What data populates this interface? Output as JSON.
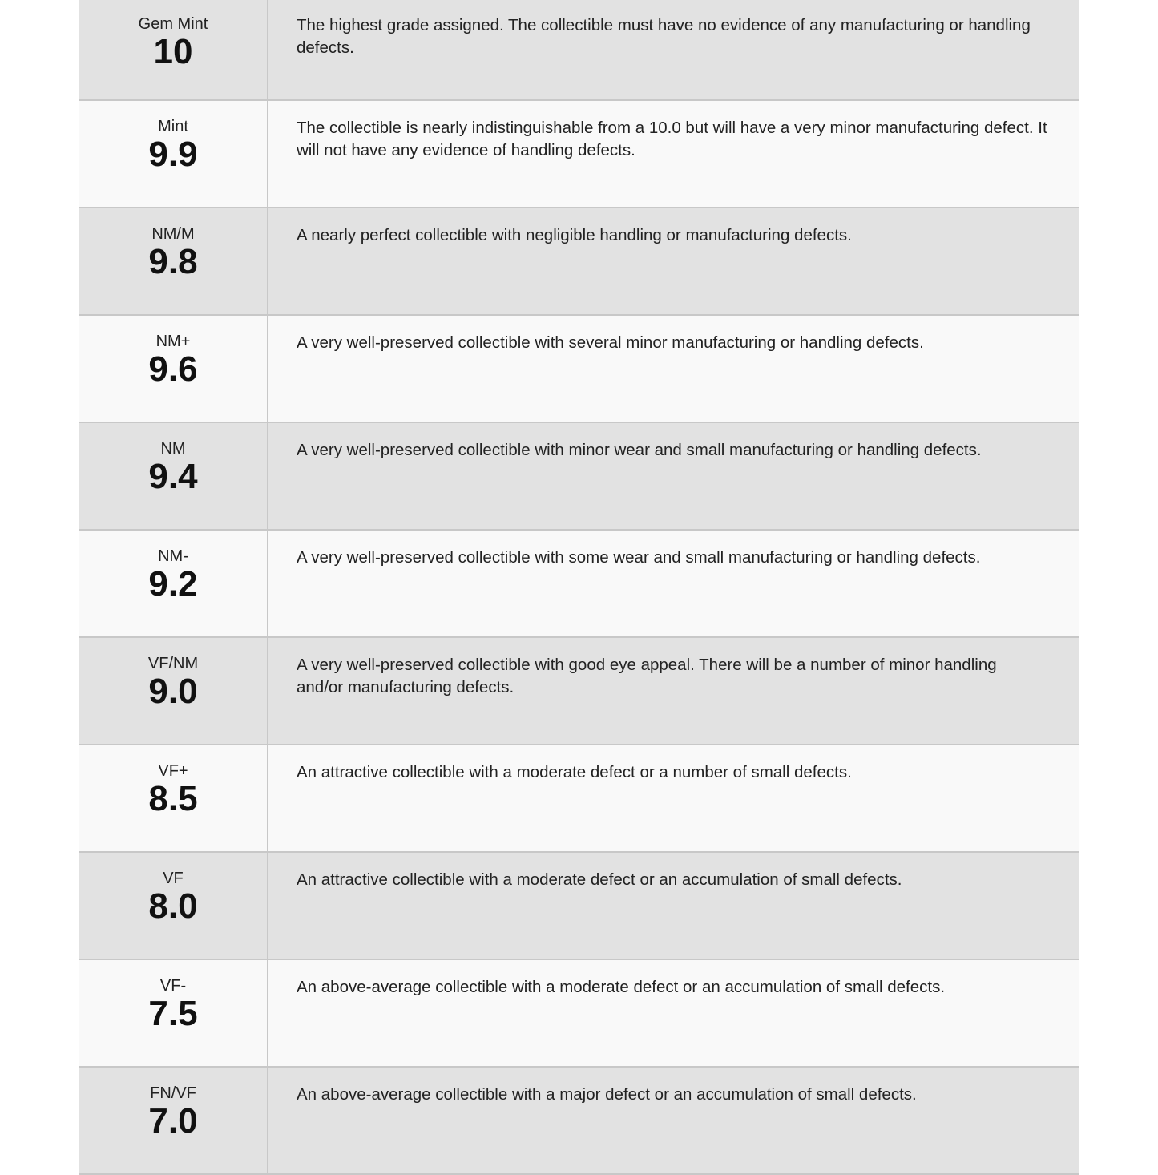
{
  "grades": [
    {
      "label": "Gem Mint",
      "number": "10",
      "description": "The highest grade assigned. The collectible must have no evidence of any manufacturing or handling defects."
    },
    {
      "label": "Mint",
      "number": "9.9",
      "description": "The collectible is nearly indistinguishable from a 10.0 but will have a very minor manufacturing defect. It will not have any evidence of handling defects."
    },
    {
      "label": "NM/M",
      "number": "9.8",
      "description": "A nearly perfect collectible with negligible handling or manufacturing defects."
    },
    {
      "label": "NM+",
      "number": "9.6",
      "description": "A very well-preserved collectible with several minor manufacturing or handling defects."
    },
    {
      "label": "NM",
      "number": "9.4",
      "description": "A very well-preserved collectible with minor wear and small manufacturing or handling defects."
    },
    {
      "label": "NM-",
      "number": "9.2",
      "description": "A very well-preserved collectible with some wear and small manufacturing or handling defects."
    },
    {
      "label": "VF/NM",
      "number": "9.0",
      "description": "A very well-preserved collectible with good eye appeal. There will be a number of minor handling and/or manufacturing defects."
    },
    {
      "label": "VF+",
      "number": "8.5",
      "description": "An attractive collectible with a moderate defect or a number of small defects."
    },
    {
      "label": "VF",
      "number": "8.0",
      "description": "An attractive collectible with a moderate defect or an accumulation of small defects."
    },
    {
      "label": "VF-",
      "number": "7.5",
      "description": "An above-average collectible with a moderate defect or an accumulation of small defects."
    },
    {
      "label": "FN/VF",
      "number": "7.0",
      "description": "An above-average collectible with a major defect or an accumulation of small defects."
    }
  ]
}
